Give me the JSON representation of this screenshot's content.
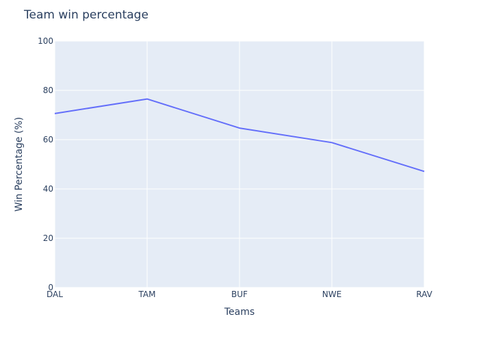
{
  "chart_data": {
    "type": "line",
    "title": "Team win percentage",
    "xlabel": "Teams",
    "ylabel": "Win Percentage (%)",
    "categories": [
      "DAL",
      "TAM",
      "BUF",
      "NWE",
      "RAV"
    ],
    "series": [
      {
        "values": [
          70.6,
          76.5,
          64.7,
          58.8,
          47.1
        ],
        "color": "#636efa"
      }
    ],
    "ylim": [
      0,
      100
    ],
    "yticks": [
      0,
      20,
      40,
      60,
      80,
      100
    ],
    "grid": true,
    "legend": "none",
    "colors": {
      "plot_background": "#e5ecf6",
      "gridline": "#ffffff",
      "text": "#2a3f5f"
    }
  }
}
